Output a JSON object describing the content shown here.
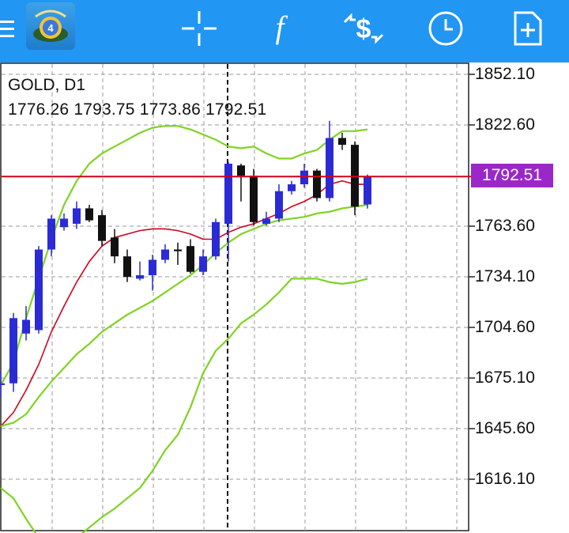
{
  "toolbar": {
    "menu_icon": "hamburger-menu-icon",
    "logo_icon": "metatrader-logo-icon",
    "crosshair_icon": "crosshair-icon",
    "indicators_icon": "function-f-icon",
    "trade_icon": "dollar-arrows-icon",
    "timeframe_icon": "clock-icon",
    "new_order_icon": "new-document-plus-icon",
    "background_color": "#2196f3"
  },
  "chart": {
    "symbol_timeframe": "GOLD, D1",
    "ohlc": "1776.26 1793.75 1773.86 1792.51",
    "current_price": "1792.51",
    "price_axis": [
      "1852.10",
      "1822.60",
      "1763.60",
      "1734.10",
      "1704.60",
      "1675.10",
      "1645.60",
      "1616.10"
    ],
    "colors": {
      "bull": "#2b2bd6",
      "bear": "#111111",
      "bands": "#7ed321",
      "middle_line": "#d0021b",
      "price_line": "#d0021b",
      "price_tag": "#9b27c9"
    }
  },
  "chart_data": {
    "type": "candlestick",
    "symbol": "GOLD",
    "timeframe": "D1",
    "ylim": [
      1588,
      1862
    ],
    "current_price": 1792.51,
    "candles": [
      {
        "o": 1671,
        "h": 1679,
        "l": 1664,
        "c": 1672
      },
      {
        "o": 1672,
        "h": 1713,
        "l": 1667,
        "c": 1710
      },
      {
        "o": 1701,
        "h": 1717,
        "l": 1697,
        "c": 1709
      },
      {
        "o": 1703,
        "h": 1752,
        "l": 1701,
        "c": 1750
      },
      {
        "o": 1750,
        "h": 1770,
        "l": 1746,
        "c": 1768
      },
      {
        "o": 1763,
        "h": 1771,
        "l": 1761,
        "c": 1768
      },
      {
        "o": 1765,
        "h": 1778,
        "l": 1762,
        "c": 1774
      },
      {
        "o": 1774,
        "h": 1776,
        "l": 1766,
        "c": 1767
      },
      {
        "o": 1770,
        "h": 1773,
        "l": 1752,
        "c": 1755
      },
      {
        "o": 1757,
        "h": 1762,
        "l": 1742,
        "c": 1746
      },
      {
        "o": 1746,
        "h": 1750,
        "l": 1731,
        "c": 1734
      },
      {
        "o": 1733,
        "h": 1743,
        "l": 1732,
        "c": 1735
      },
      {
        "o": 1735,
        "h": 1747,
        "l": 1726,
        "c": 1744
      },
      {
        "o": 1744,
        "h": 1753,
        "l": 1742,
        "c": 1750
      },
      {
        "o": 1750,
        "h": 1754,
        "l": 1741,
        "c": 1749
      },
      {
        "o": 1752,
        "h": 1756,
        "l": 1736,
        "c": 1737
      },
      {
        "o": 1737,
        "h": 1750,
        "l": 1735,
        "c": 1746
      },
      {
        "o": 1746,
        "h": 1768,
        "l": 1744,
        "c": 1766
      },
      {
        "o": 1765,
        "h": 1801,
        "l": 1743,
        "c": 1800
      },
      {
        "o": 1799,
        "h": 1800,
        "l": 1778,
        "c": 1793
      },
      {
        "o": 1793,
        "h": 1797,
        "l": 1764,
        "c": 1766
      },
      {
        "o": 1765,
        "h": 1772,
        "l": 1764,
        "c": 1768
      },
      {
        "o": 1768,
        "h": 1788,
        "l": 1766,
        "c": 1784
      },
      {
        "o": 1784,
        "h": 1790,
        "l": 1782,
        "c": 1788
      },
      {
        "o": 1788,
        "h": 1800,
        "l": 1786,
        "c": 1796
      },
      {
        "o": 1796,
        "h": 1797,
        "l": 1778,
        "c": 1780
      },
      {
        "o": 1780,
        "h": 1825,
        "l": 1778,
        "c": 1815
      },
      {
        "o": 1815,
        "h": 1818,
        "l": 1808,
        "c": 1811
      },
      {
        "o": 1811,
        "h": 1813,
        "l": 1770,
        "c": 1775
      },
      {
        "o": 1776.26,
        "h": 1793.75,
        "l": 1773.86,
        "c": 1792.51
      }
    ],
    "series": [
      {
        "name": "",
        "kind": "upper_band",
        "values": [
          1671,
          1684,
          1710,
          1733,
          1756,
          1776,
          1790,
          1800,
          1806,
          1810,
          1814,
          1818,
          1821,
          1822,
          1822,
          1820,
          1817,
          1814,
          1810,
          1809,
          1810,
          1806,
          1803,
          1803,
          1806,
          1808,
          1814,
          1819,
          1819,
          1820
        ]
      },
      {
        "name": "",
        "kind": "middle_line",
        "values": [
          1647,
          1655,
          1668,
          1683,
          1702,
          1717,
          1731,
          1743,
          1752,
          1757,
          1759,
          1761,
          1762,
          1762,
          1761,
          1759,
          1756,
          1756,
          1760,
          1763,
          1765,
          1768,
          1771,
          1775,
          1778,
          1782,
          1788,
          1790,
          1788,
          1788
        ]
      },
      {
        "name": "",
        "kind": "lower_band",
        "values": [
          1647,
          1649,
          1654,
          1664,
          1673,
          1681,
          1689,
          1695,
          1702,
          1707,
          1712,
          1716,
          1720,
          1725,
          1730,
          1735,
          1741,
          1748,
          1754,
          1759,
          1762,
          1765,
          1767,
          1768,
          1769,
          1771,
          1772,
          1774,
          1775,
          1776
        ]
      },
      {
        "name": "",
        "kind": "outer_upper",
        "values": [
          null,
          null,
          null,
          null,
          null,
          null,
          null,
          null,
          null,
          null,
          null,
          null,
          null,
          null,
          null,
          null,
          null,
          null,
          null,
          null,
          null,
          null,
          null,
          null,
          null,
          null,
          null,
          null,
          null,
          null
        ]
      },
      {
        "name": "",
        "kind": "outer_lower",
        "values": [
          1611,
          1605,
          1593,
          1582,
          1578,
          1578,
          1582,
          1588,
          1594,
          1599,
          1605,
          1611,
          1621,
          1633,
          1642,
          1658,
          1678,
          1691,
          1698,
          1707,
          1712,
          1718,
          1725,
          1733,
          1733,
          1733,
          1731,
          1730,
          1731,
          1733
        ]
      }
    ]
  }
}
